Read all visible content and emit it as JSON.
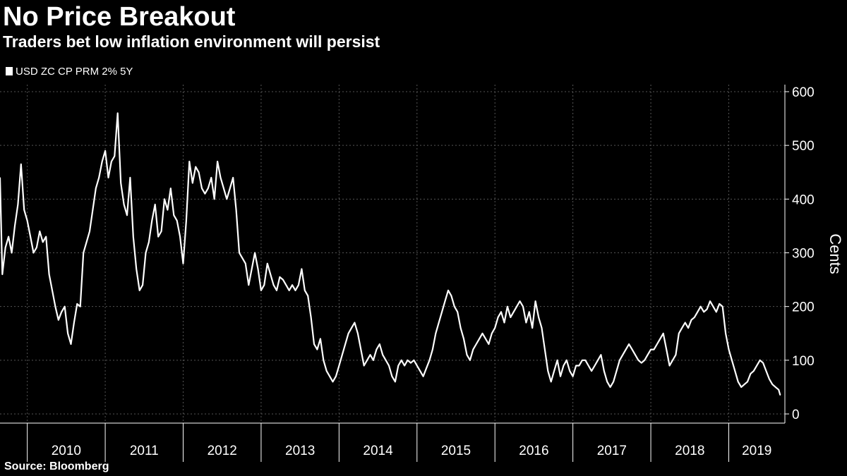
{
  "chart_data": {
    "type": "line",
    "title": "No Price Breakout",
    "subtitle": "Traders bet low inflation environment will persist",
    "legend": [
      "USD ZC CP PRM 2% 5Y"
    ],
    "ylabel": "Cents",
    "xlabel": "",
    "source": "Source: Bloomberg",
    "ylim": [
      0,
      600
    ],
    "xlim": [
      2009.65,
      2019.72
    ],
    "yticks": [
      0,
      100,
      200,
      300,
      400,
      500,
      600
    ],
    "xtick_labels": [
      "2010",
      "2011",
      "2012",
      "2013",
      "2014",
      "2015",
      "2016",
      "2017",
      "2018",
      "2019"
    ],
    "grid": true,
    "color": "#ffffff",
    "series": [
      {
        "name": "USD ZC CP PRM 2% 5Y",
        "x": [
          2009.65,
          2009.68,
          2009.72,
          2009.76,
          2009.8,
          2009.84,
          2009.88,
          2009.92,
          2009.96,
          2010.0,
          2010.04,
          2010.08,
          2010.12,
          2010.16,
          2010.2,
          2010.24,
          2010.28,
          2010.32,
          2010.36,
          2010.4,
          2010.44,
          2010.48,
          2010.52,
          2010.56,
          2010.6,
          2010.64,
          2010.68,
          2010.72,
          2010.76,
          2010.8,
          2010.84,
          2010.88,
          2010.92,
          2010.96,
          2011.0,
          2011.04,
          2011.08,
          2011.12,
          2011.16,
          2011.2,
          2011.24,
          2011.28,
          2011.32,
          2011.36,
          2011.4,
          2011.44,
          2011.48,
          2011.52,
          2011.56,
          2011.6,
          2011.64,
          2011.68,
          2011.72,
          2011.76,
          2011.8,
          2011.84,
          2011.88,
          2011.92,
          2011.96,
          2012.0,
          2012.04,
          2012.08,
          2012.12,
          2012.16,
          2012.2,
          2012.24,
          2012.28,
          2012.32,
          2012.36,
          2012.4,
          2012.44,
          2012.48,
          2012.52,
          2012.56,
          2012.6,
          2012.64,
          2012.68,
          2012.72,
          2012.76,
          2012.8,
          2012.84,
          2012.88,
          2012.92,
          2012.96,
          2013.0,
          2013.04,
          2013.08,
          2013.12,
          2013.16,
          2013.2,
          2013.24,
          2013.28,
          2013.32,
          2013.36,
          2013.4,
          2013.44,
          2013.48,
          2013.52,
          2013.56,
          2013.6,
          2013.64,
          2013.68,
          2013.72,
          2013.76,
          2013.8,
          2013.84,
          2013.88,
          2013.92,
          2013.96,
          2014.0,
          2014.04,
          2014.08,
          2014.12,
          2014.16,
          2014.2,
          2014.24,
          2014.28,
          2014.32,
          2014.36,
          2014.4,
          2014.44,
          2014.48,
          2014.52,
          2014.56,
          2014.6,
          2014.64,
          2014.68,
          2014.72,
          2014.76,
          2014.8,
          2014.84,
          2014.88,
          2014.92,
          2014.96,
          2015.0,
          2015.04,
          2015.08,
          2015.12,
          2015.16,
          2015.2,
          2015.24,
          2015.28,
          2015.32,
          2015.36,
          2015.4,
          2015.44,
          2015.48,
          2015.52,
          2015.56,
          2015.6,
          2015.64,
          2015.68,
          2015.72,
          2015.76,
          2015.8,
          2015.84,
          2015.88,
          2015.92,
          2015.96,
          2016.0,
          2016.04,
          2016.08,
          2016.12,
          2016.16,
          2016.2,
          2016.24,
          2016.28,
          2016.32,
          2016.36,
          2016.4,
          2016.44,
          2016.48,
          2016.52,
          2016.56,
          2016.6,
          2016.64,
          2016.68,
          2016.72,
          2016.76,
          2016.8,
          2016.84,
          2016.88,
          2016.92,
          2016.96,
          2017.0,
          2017.04,
          2017.08,
          2017.12,
          2017.16,
          2017.2,
          2017.24,
          2017.28,
          2017.32,
          2017.36,
          2017.4,
          2017.44,
          2017.48,
          2017.52,
          2017.56,
          2017.6,
          2017.64,
          2017.68,
          2017.72,
          2017.76,
          2017.8,
          2017.84,
          2017.88,
          2017.92,
          2017.96,
          2018.0,
          2018.04,
          2018.08,
          2018.12,
          2018.16,
          2018.2,
          2018.24,
          2018.28,
          2018.32,
          2018.36,
          2018.4,
          2018.44,
          2018.48,
          2018.52,
          2018.56,
          2018.6,
          2018.64,
          2018.68,
          2018.72,
          2018.76,
          2018.8,
          2018.84,
          2018.88,
          2018.92,
          2018.96,
          2019.0,
          2019.04,
          2019.08,
          2019.12,
          2019.16,
          2019.2,
          2019.24,
          2019.28,
          2019.32,
          2019.36,
          2019.4,
          2019.44,
          2019.48,
          2019.52,
          2019.56,
          2019.6,
          2019.64,
          2019.66
        ],
        "values": [
          440,
          260,
          310,
          330,
          300,
          350,
          390,
          465,
          380,
          360,
          330,
          300,
          310,
          340,
          320,
          330,
          260,
          230,
          200,
          175,
          190,
          200,
          150,
          130,
          170,
          205,
          200,
          300,
          320,
          340,
          380,
          420,
          440,
          470,
          490,
          440,
          470,
          480,
          560,
          430,
          390,
          370,
          440,
          330,
          270,
          230,
          240,
          300,
          320,
          360,
          390,
          330,
          340,
          400,
          380,
          420,
          370,
          360,
          330,
          280,
          360,
          470,
          430,
          460,
          450,
          420,
          410,
          420,
          440,
          400,
          470,
          440,
          420,
          400,
          420,
          440,
          380,
          300,
          290,
          280,
          240,
          270,
          300,
          270,
          230,
          240,
          280,
          260,
          240,
          230,
          255,
          250,
          240,
          230,
          240,
          230,
          240,
          270,
          230,
          220,
          180,
          130,
          120,
          140,
          100,
          80,
          70,
          60,
          70,
          90,
          110,
          130,
          150,
          160,
          170,
          150,
          120,
          90,
          100,
          110,
          100,
          120,
          130,
          110,
          100,
          90,
          70,
          60,
          90,
          100,
          90,
          100,
          95,
          100,
          90,
          80,
          70,
          85,
          100,
          120,
          150,
          170,
          190,
          210,
          230,
          220,
          200,
          190,
          160,
          140,
          110,
          100,
          120,
          130,
          140,
          150,
          140,
          130,
          150,
          160,
          180,
          190,
          170,
          200,
          180,
          190,
          200,
          210,
          200,
          170,
          190,
          160,
          210,
          180,
          160,
          120,
          80,
          60,
          80,
          100,
          70,
          90,
          100,
          80,
          70,
          90,
          90,
          100,
          100,
          90,
          80,
          90,
          100,
          110,
          80,
          60,
          50,
          60,
          80,
          100,
          110,
          120,
          130,
          120,
          110,
          100,
          95,
          100,
          110,
          120,
          120,
          130,
          140,
          150,
          120,
          90,
          100,
          110,
          150,
          160,
          170,
          160,
          175,
          180,
          190,
          200,
          190,
          195,
          210,
          200,
          190,
          205,
          200,
          150,
          120,
          100,
          80,
          60,
          50,
          55,
          60,
          75,
          80,
          90,
          100,
          95,
          80,
          65,
          55,
          50,
          45,
          35
        ]
      }
    ]
  }
}
